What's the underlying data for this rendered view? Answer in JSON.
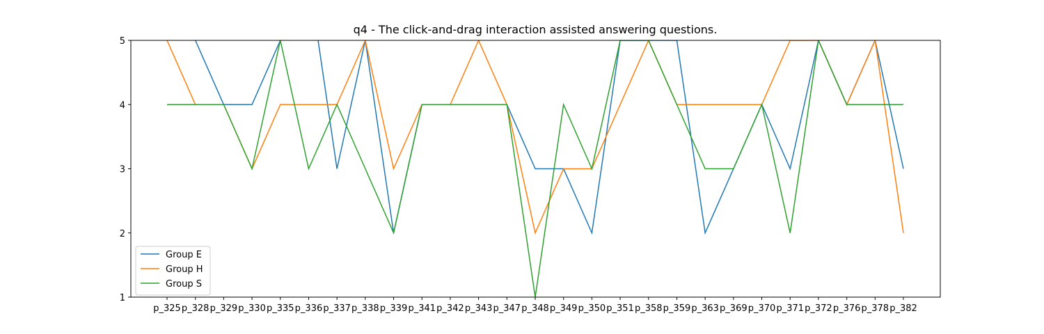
{
  "chart_data": {
    "type": "line",
    "title": "q4 - The click-and-drag interaction assisted answering questions.",
    "xlabel": "",
    "ylabel": "",
    "categories": [
      "p_325",
      "p_328",
      "p_329",
      "p_330",
      "p_335",
      "p_336",
      "p_337",
      "p_338",
      "p_339",
      "p_341",
      "p_342",
      "p_343",
      "p_347",
      "p_348",
      "p_349",
      "p_350",
      "p_351",
      "p_358",
      "p_359",
      "p_363",
      "p_369",
      "p_370",
      "p_371",
      "p_372",
      "p_376",
      "p_378",
      "p_382"
    ],
    "ylim": [
      1,
      5
    ],
    "yticks": [
      1,
      2,
      3,
      4,
      5
    ],
    "grid": false,
    "legend_position": "lower-left",
    "series": [
      {
        "name": "Group E",
        "color": "#1f77b4",
        "values": [
          6,
          5,
          4,
          4,
          5,
          6,
          3,
          5,
          2,
          4,
          4,
          4,
          4,
          3,
          3,
          2,
          5,
          5,
          5,
          2,
          3,
          4,
          3,
          5,
          4,
          5,
          3
        ]
      },
      {
        "name": "Group H",
        "color": "#ff7f0e",
        "values": [
          5,
          4,
          4,
          3,
          4,
          4,
          4,
          5,
          3,
          4,
          4,
          5,
          4,
          2,
          3,
          3,
          4,
          5,
          4,
          4,
          4,
          4,
          5,
          5,
          4,
          5,
          2
        ]
      },
      {
        "name": "Group S",
        "color": "#2ca02c",
        "values": [
          4,
          4,
          4,
          3,
          5,
          3,
          4,
          3,
          2,
          4,
          4,
          4,
          4,
          1,
          4,
          3,
          5,
          5,
          4,
          3,
          3,
          4,
          2,
          5,
          4,
          4,
          4
        ]
      }
    ]
  }
}
